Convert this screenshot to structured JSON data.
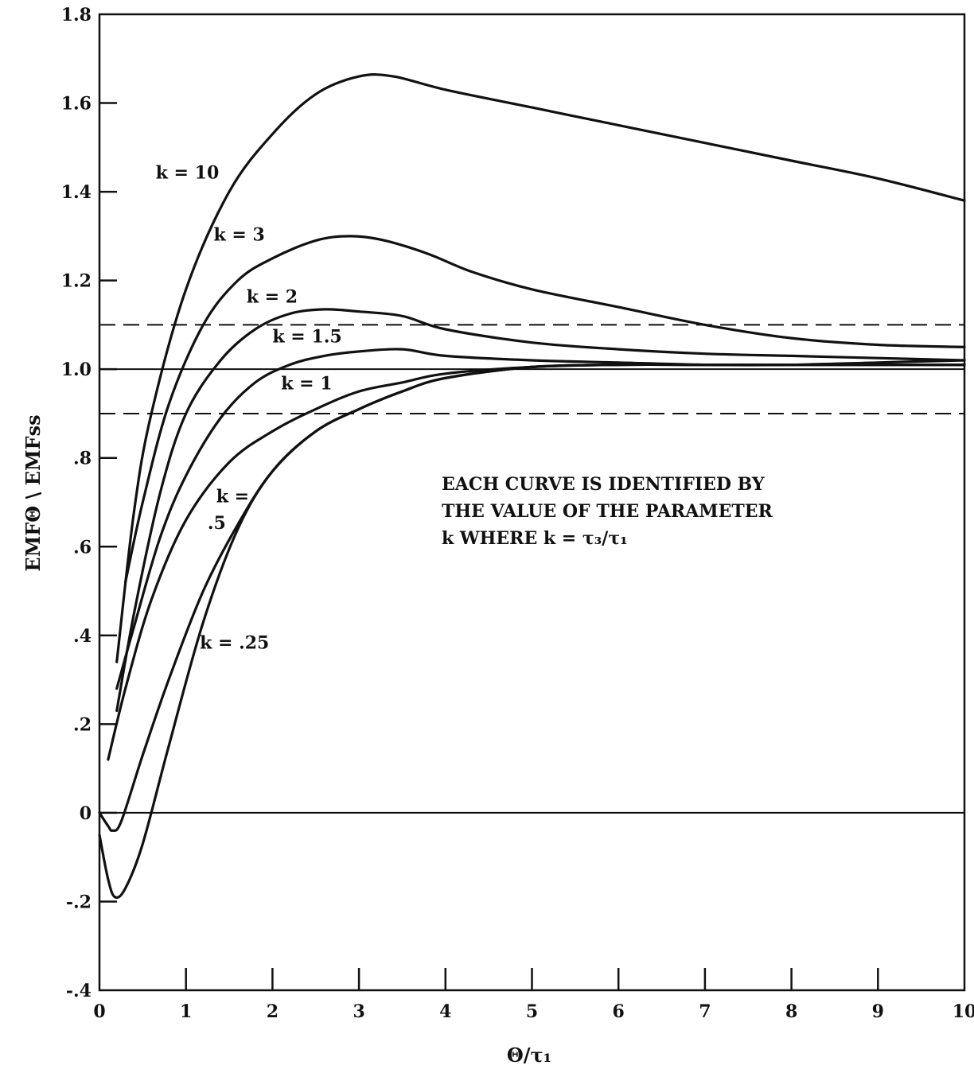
{
  "chart_data": {
    "type": "line",
    "title": "",
    "xlabel": "Θ/τ₁",
    "ylabel": "EMFΘ \\ EMFss",
    "xlim": [
      0,
      10
    ],
    "ylim": [
      -0.4,
      1.8
    ],
    "grid": false,
    "x_ticks": [
      "0",
      "1",
      "2",
      "3",
      "4",
      "5",
      "6",
      "7",
      "8",
      "9",
      "10"
    ],
    "y_ticks": [
      "-.4",
      "-.2",
      "0",
      ".2",
      ".4",
      ".6",
      ".8",
      "1.0",
      "1.2",
      "1.4",
      "1.6",
      "1.8"
    ],
    "y_tick_values": [
      -0.4,
      -0.2,
      0,
      0.2,
      0.4,
      0.6,
      0.8,
      1.0,
      1.2,
      1.4,
      1.6,
      1.8
    ],
    "reference_lines": [
      {
        "y": 1.0,
        "style": "solid"
      },
      {
        "y": 1.1,
        "style": "dashed"
      },
      {
        "y": 0.9,
        "style": "dashed"
      },
      {
        "y": 0.0,
        "style": "solid"
      }
    ],
    "annotation": [
      "EACH CURVE IS IDENTIFIED BY",
      "THE VALUE OF THE PARAMETER",
      "k WHERE k = τ₃/τ₁"
    ],
    "series": [
      {
        "name": "k = 10",
        "label_lines": [
          "k = 10"
        ],
        "x": [
          0.2,
          0.4,
          0.6,
          1.0,
          1.5,
          2.0,
          2.5,
          3.0,
          3.4,
          4.0,
          5.0,
          6.0,
          7.0,
          8.0,
          9.0,
          10.0
        ],
        "y": [
          0.34,
          0.68,
          0.9,
          1.18,
          1.4,
          1.53,
          1.62,
          1.66,
          1.66,
          1.63,
          1.59,
          1.55,
          1.51,
          1.47,
          1.43,
          1.38
        ]
      },
      {
        "name": "k = 3",
        "label_lines": [
          "k = 3"
        ],
        "x": [
          0.3,
          0.5,
          0.8,
          1.2,
          1.6,
          2.0,
          2.5,
          2.9,
          3.3,
          3.8,
          4.3,
          5.0,
          6.0,
          7.0,
          8.0,
          9.0,
          10.0
        ],
        "y": [
          0.52,
          0.7,
          0.92,
          1.1,
          1.2,
          1.25,
          1.29,
          1.3,
          1.29,
          1.26,
          1.22,
          1.18,
          1.14,
          1.1,
          1.07,
          1.055,
          1.05
        ]
      },
      {
        "name": "k = 2",
        "label_lines": [
          "k = 2"
        ],
        "x": [
          0.2,
          0.4,
          0.7,
          1.0,
          1.4,
          1.8,
          2.2,
          2.6,
          3.0,
          3.5,
          4.0,
          5.0,
          6.0,
          7.0,
          8.0,
          9.0,
          10.0
        ],
        "y": [
          0.23,
          0.45,
          0.72,
          0.9,
          1.02,
          1.09,
          1.125,
          1.135,
          1.13,
          1.12,
          1.09,
          1.06,
          1.045,
          1.035,
          1.03,
          1.025,
          1.02
        ]
      },
      {
        "name": "k = 1.5",
        "label_lines": [
          "k = 1.5"
        ],
        "x": [
          0.2,
          0.4,
          0.7,
          1.0,
          1.4,
          1.8,
          2.2,
          2.6,
          3.0,
          3.5,
          4.0,
          5.0,
          6.0,
          7.0,
          8.0,
          9.0,
          10.0
        ],
        "y": [
          0.28,
          0.42,
          0.62,
          0.76,
          0.89,
          0.97,
          1.01,
          1.03,
          1.04,
          1.045,
          1.03,
          1.02,
          1.015,
          1.01,
          1.01,
          1.015,
          1.02
        ]
      },
      {
        "name": "k = 1",
        "label_lines": [
          "k = 1"
        ],
        "x": [
          0.1,
          0.3,
          0.6,
          1.0,
          1.5,
          2.0,
          2.5,
          3.0,
          3.5,
          4.0,
          5.0,
          6.0,
          7.0,
          8.0,
          9.0,
          10.0
        ],
        "y": [
          0.12,
          0.28,
          0.48,
          0.66,
          0.79,
          0.86,
          0.91,
          0.95,
          0.97,
          0.99,
          1.005,
          1.01,
          1.01,
          1.01,
          1.01,
          1.01
        ]
      },
      {
        "name": "k = .5",
        "label_lines": [
          "k =",
          ".5"
        ],
        "x": [
          0.0,
          0.1,
          0.15,
          0.25,
          0.5,
          0.8,
          1.2,
          1.6,
          2.0,
          2.5,
          3.0,
          3.5,
          4.0,
          5.0,
          6.0,
          7.0,
          8.0,
          9.0,
          10.0
        ],
        "y": [
          0.0,
          -0.03,
          -0.04,
          -0.02,
          0.13,
          0.3,
          0.5,
          0.65,
          0.77,
          0.86,
          0.91,
          0.95,
          0.98,
          1.005,
          1.01,
          1.01,
          1.01,
          1.01,
          1.01
        ]
      },
      {
        "name": "k = .25",
        "label_lines": [
          "k = .25"
        ],
        "x": [
          0.0,
          0.1,
          0.18,
          0.3,
          0.5,
          0.8,
          1.2,
          1.6,
          2.0,
          2.5,
          3.0,
          3.5,
          4.0,
          5.0,
          6.0,
          7.0,
          8.0,
          9.0,
          10.0
        ],
        "y": [
          -0.05,
          -0.15,
          -0.19,
          -0.17,
          -0.07,
          0.15,
          0.43,
          0.64,
          0.77,
          0.86,
          0.91,
          0.95,
          0.98,
          1.005,
          1.01,
          1.01,
          1.01,
          1.01,
          1.01
        ]
      }
    ]
  }
}
